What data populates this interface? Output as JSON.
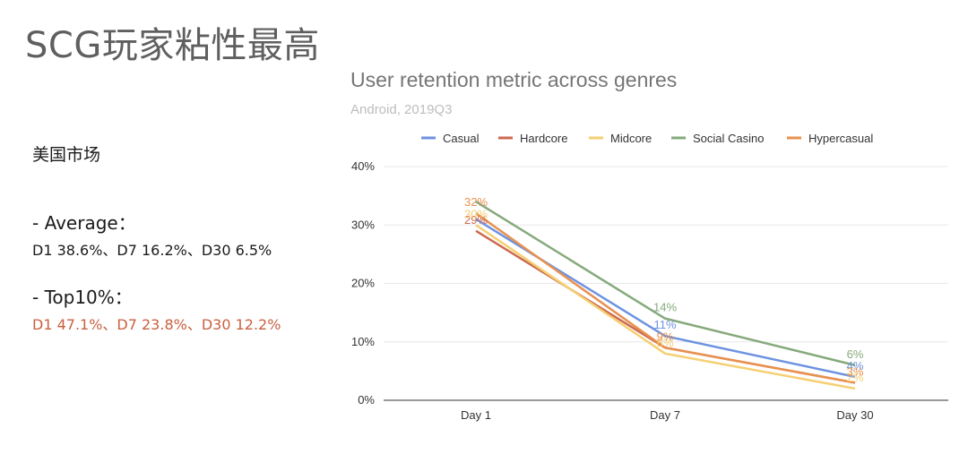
{
  "page": {
    "title": "SCG玩家粘性最高",
    "market": "美国市场",
    "average_heading": "- Average：",
    "average_line": "D1 38.6%、D7 16.2%、D30 6.5%",
    "top_heading": "- Top10%：",
    "top_line": "D1 47.1%、D7 23.8%、D30 12.2%"
  },
  "chart_data": {
    "type": "line",
    "title": "User retention metric across genres",
    "subtitle": "Android, 2019Q3",
    "categories": [
      "Day 1",
      "Day 7",
      "Day 30"
    ],
    "y_ticks": [
      "0%",
      "10%",
      "20%",
      "30%",
      "40%"
    ],
    "ylim": [
      0,
      40
    ],
    "grid": true,
    "legend_position": "top",
    "series": [
      {
        "name": "Casual",
        "color": "#6d93e0",
        "values": [
          31,
          11,
          4
        ],
        "labels": [
          "",
          "11%",
          "4%"
        ]
      },
      {
        "name": "Hardcore",
        "color": "#cc6a50",
        "values": [
          29,
          9,
          3
        ],
        "labels": [
          "29%",
          "",
          ""
        ]
      },
      {
        "name": "Midcore",
        "color": "#f5cf72",
        "values": [
          30,
          8,
          2
        ],
        "labels": [
          "30%",
          "8%",
          "2%"
        ]
      },
      {
        "name": "Social Casino",
        "color": "#86aa7c",
        "values": [
          34,
          14,
          6
        ],
        "labels": [
          "",
          "14%",
          "6%"
        ]
      },
      {
        "name": "Hypercasual",
        "color": "#e8914f",
        "values": [
          32,
          9,
          3
        ],
        "labels": [
          "32%",
          "9%",
          "3%"
        ]
      }
    ]
  }
}
